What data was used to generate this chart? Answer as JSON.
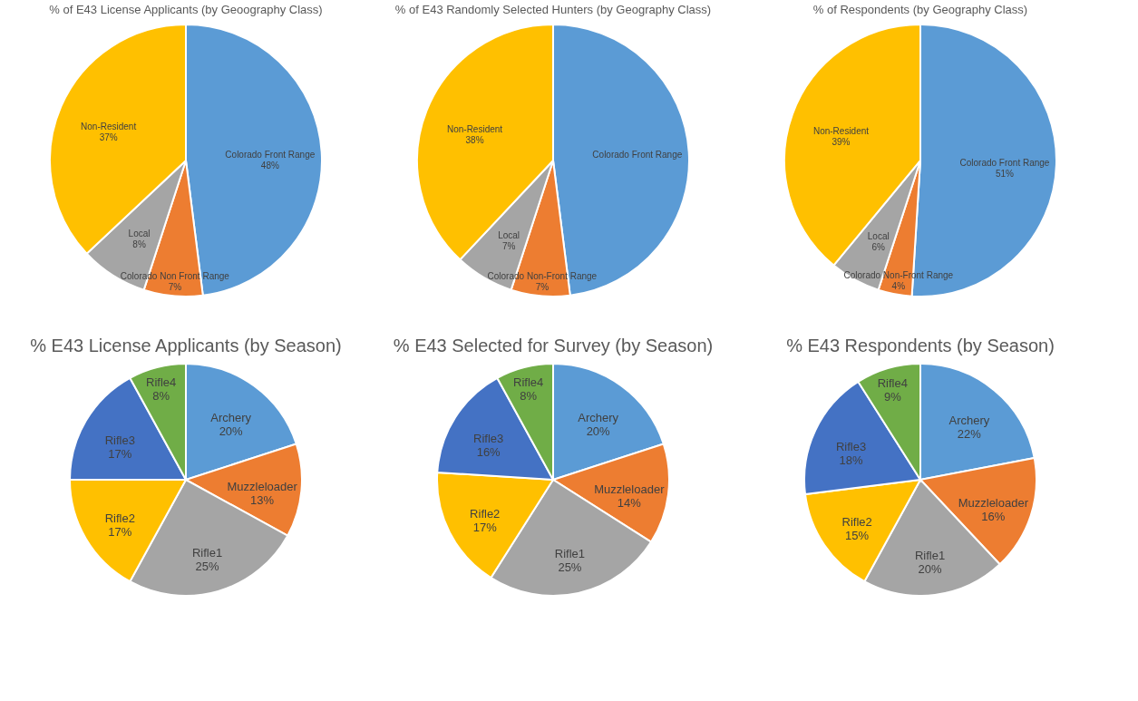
{
  "chart_data": [
    {
      "type": "pie",
      "title": "% of E43 License Applicants (by Geoography Class)",
      "categories": [
        "Colorado Front Range",
        "Colorado Non Front Range",
        "Local",
        "Non-Resident"
      ],
      "values": [
        48,
        7,
        8,
        37
      ],
      "colors": [
        "#5b9bd5",
        "#ed7d31",
        "#a5a5a5",
        "#ffc000"
      ],
      "value_labels": [
        "48%",
        "7%",
        "8%",
        "37%"
      ]
    },
    {
      "type": "pie",
      "title": "% of E43 Randomly Selected Hunters (by Geography Class)",
      "categories": [
        "Colorado Front Range",
        "Colorado Non-Front Range",
        "Local",
        "Non-Resident"
      ],
      "values": [
        48,
        7,
        7,
        38
      ],
      "colors": [
        "#5b9bd5",
        "#ed7d31",
        "#a5a5a5",
        "#ffc000"
      ],
      "value_labels": [
        null,
        "7%",
        "7%",
        "38%"
      ]
    },
    {
      "type": "pie",
      "title": "% of Respondents (by Geography Class)",
      "categories": [
        "Colorado Front Range",
        "Colorado Non-Front Range",
        "Local",
        "Non-Resident"
      ],
      "values": [
        51,
        4,
        6,
        39
      ],
      "colors": [
        "#5b9bd5",
        "#ed7d31",
        "#a5a5a5",
        "#ffc000"
      ],
      "value_labels": [
        "51%",
        "4%",
        "6%",
        "39%"
      ]
    },
    {
      "type": "pie",
      "title": "% E43 License Applicants (by Season)",
      "categories": [
        "Archery",
        "Muzzleloader",
        "Rifle1",
        "Rifle2",
        "Rifle3",
        "Rifle4"
      ],
      "values": [
        20,
        13,
        25,
        17,
        17,
        8
      ],
      "colors": [
        "#5b9bd5",
        "#ed7d31",
        "#a5a5a5",
        "#ffc000",
        "#4472c4",
        "#70ad47"
      ],
      "value_labels": [
        "20%",
        "13%",
        "25%",
        "17%",
        "17%",
        "8%"
      ]
    },
    {
      "type": "pie",
      "title": "% E43 Selected for Survey (by Season)",
      "categories": [
        "Archery",
        "Muzzleloader",
        "Rifle1",
        "Rifle2",
        "Rifle3",
        "Rifle4"
      ],
      "values": [
        20,
        14,
        25,
        17,
        16,
        8
      ],
      "colors": [
        "#5b9bd5",
        "#ed7d31",
        "#a5a5a5",
        "#ffc000",
        "#4472c4",
        "#70ad47"
      ],
      "value_labels": [
        "20%",
        "14%",
        "25%",
        "17%",
        "16%",
        "8%"
      ]
    },
    {
      "type": "pie",
      "title": "% E43 Respondents (by Season)",
      "categories": [
        "Archery",
        "Muzzleloader",
        "Rifle1",
        "Rifle2",
        "Rifle3",
        "Rifle4"
      ],
      "values": [
        22,
        16,
        20,
        15,
        18,
        9
      ],
      "colors": [
        "#5b9bd5",
        "#ed7d31",
        "#a5a5a5",
        "#ffc000",
        "#4472c4",
        "#70ad47"
      ],
      "value_labels": [
        "22%",
        "16%",
        "20%",
        "15%",
        "18%",
        "9%"
      ]
    }
  ]
}
